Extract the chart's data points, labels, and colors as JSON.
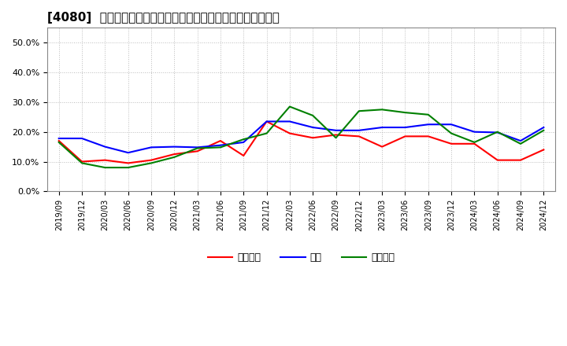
{
  "title": "[4080]  売上債権、在庫、買入債務の総資産に対する比率の推移",
  "legend_labels": [
    "売上債権",
    "在庫",
    "買入債務"
  ],
  "line_colors": [
    "#ff0000",
    "#0000ff",
    "#008000"
  ],
  "x_labels": [
    "2019/09",
    "2019/12",
    "2020/03",
    "2020/06",
    "2020/09",
    "2020/12",
    "2021/03",
    "2021/06",
    "2021/09",
    "2021/12",
    "2022/03",
    "2022/06",
    "2022/09",
    "2022/12",
    "2023/03",
    "2023/06",
    "2023/09",
    "2023/12",
    "2024/03",
    "2024/06",
    "2024/09",
    "2024/12"
  ],
  "売上債権": [
    0.17,
    0.1,
    0.105,
    0.095,
    0.105,
    0.125,
    0.135,
    0.17,
    0.12,
    0.235,
    0.195,
    0.18,
    0.19,
    0.185,
    0.15,
    0.185,
    0.185,
    0.16,
    0.16,
    0.105,
    0.105,
    0.14
  ],
  "在庫": [
    0.178,
    0.178,
    0.15,
    0.13,
    0.148,
    0.15,
    0.148,
    0.155,
    0.165,
    0.235,
    0.235,
    0.215,
    0.205,
    0.205,
    0.215,
    0.215,
    0.225,
    0.225,
    0.2,
    0.198,
    0.17,
    0.215
  ],
  "買入債務": [
    0.165,
    0.095,
    0.08,
    0.08,
    0.095,
    0.115,
    0.145,
    0.148,
    0.175,
    0.195,
    0.285,
    0.255,
    0.18,
    0.27,
    0.275,
    0.265,
    0.258,
    0.195,
    0.165,
    0.2,
    0.16,
    0.205
  ],
  "ylim": [
    0.0,
    0.55
  ],
  "yticks": [
    0.0,
    0.1,
    0.2,
    0.3,
    0.4,
    0.5
  ],
  "background_color": "#ffffff",
  "grid_color": "#bbbbbb",
  "title_fontsize": 11
}
